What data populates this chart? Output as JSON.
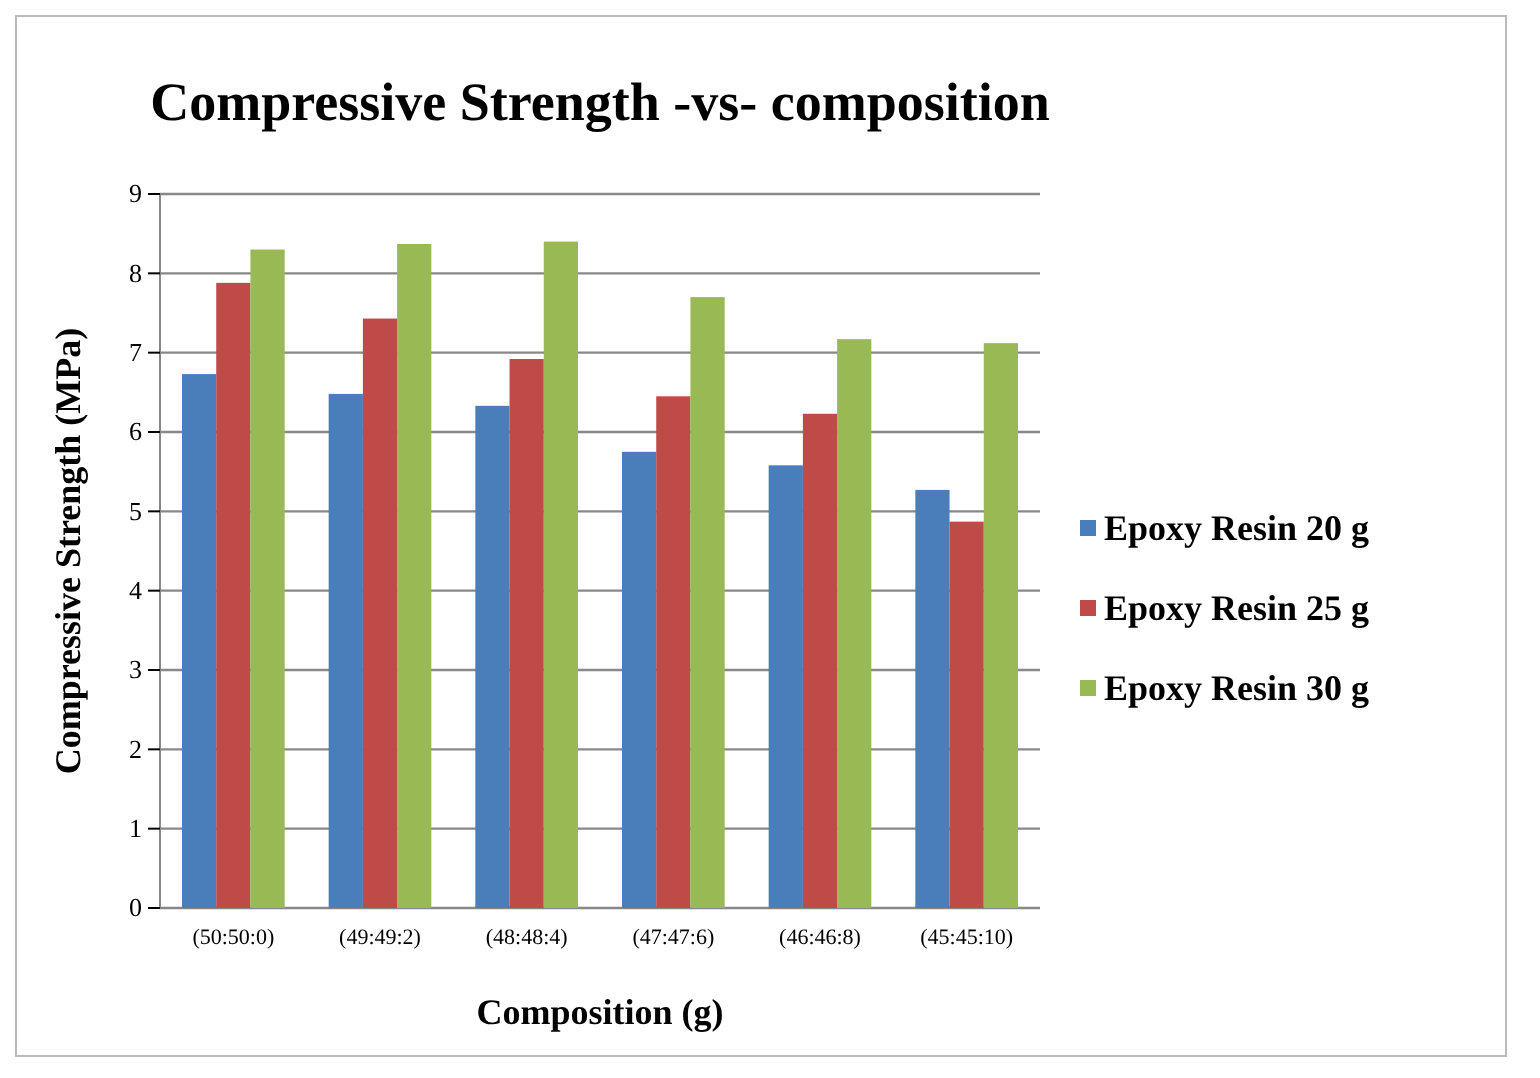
{
  "chart_data": {
    "type": "bar",
    "title": "Compressive Strength -vs- composition",
    "xlabel": "Composition (g)",
    "ylabel": "Compressive Strength (MPa)",
    "categories": [
      "(50:50:0)",
      "(49:49:2)",
      "(48:48:4)",
      "(47:47:6)",
      "(46:46:8)",
      "(45:45:10)"
    ],
    "series": [
      {
        "name": "Epoxy Resin 20 g",
        "color": "#4a7ebb",
        "values": [
          6.73,
          6.48,
          6.33,
          5.75,
          5.58,
          5.27
        ]
      },
      {
        "name": "Epoxy Resin 25 g",
        "color": "#be4b48",
        "values": [
          7.88,
          7.43,
          6.92,
          6.45,
          6.23,
          4.87
        ]
      },
      {
        "name": "Epoxy Resin 30 g",
        "color": "#98b954",
        "values": [
          8.3,
          8.37,
          8.4,
          7.7,
          7.17,
          7.12
        ]
      }
    ],
    "ylim": [
      0,
      9
    ],
    "yticks": [
      0,
      1,
      2,
      3,
      4,
      5,
      6,
      7,
      8,
      9
    ],
    "grid": "y",
    "legend": "right"
  }
}
